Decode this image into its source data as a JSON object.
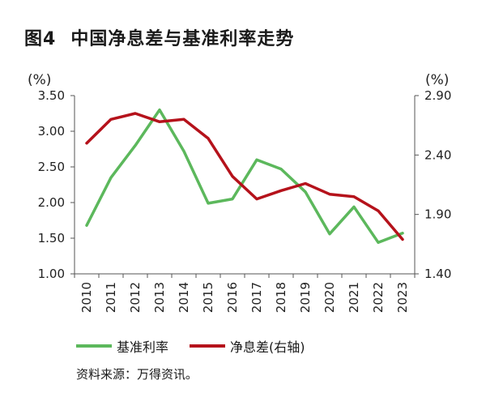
{
  "title": {
    "label": "图4",
    "text": "中国净息差与基准利率走势"
  },
  "chart_data": {
    "type": "line",
    "title": "中国净息差与基准利率走势",
    "categories": [
      "2010",
      "2011",
      "2012",
      "2013",
      "2014",
      "2015",
      "2016",
      "2017",
      "2018",
      "2019",
      "2020",
      "2021",
      "2022",
      "2023"
    ],
    "left_axis": {
      "unit": "(%)",
      "ylim": [
        1.0,
        3.5
      ],
      "ticks": [
        "1.00",
        "1.50",
        "2.00",
        "2.50",
        "3.00",
        "3.50"
      ]
    },
    "right_axis": {
      "unit": "(%)",
      "ylim": [
        1.4,
        2.9
      ],
      "ticks": [
        "1.40",
        "1.90",
        "2.40",
        "2.90"
      ]
    },
    "series": [
      {
        "name": "基准利率",
        "axis": "left",
        "color": "#5cb85c",
        "values": [
          1.68,
          2.35,
          2.8,
          3.3,
          2.72,
          1.99,
          2.05,
          2.6,
          2.47,
          2.15,
          1.56,
          1.94,
          1.44,
          1.57
        ]
      },
      {
        "name": "净息差(右轴)",
        "axis": "right",
        "color": "#b5121b",
        "values": [
          2.5,
          2.7,
          2.75,
          2.68,
          2.7,
          2.54,
          2.22,
          2.03,
          2.1,
          2.16,
          2.07,
          2.05,
          1.93,
          1.69
        ]
      }
    ],
    "grid": false,
    "legend": "bottom"
  },
  "legend": {
    "items": [
      "基准利率",
      "净息差(右轴)"
    ]
  },
  "source": "资料来源：万得资讯。"
}
